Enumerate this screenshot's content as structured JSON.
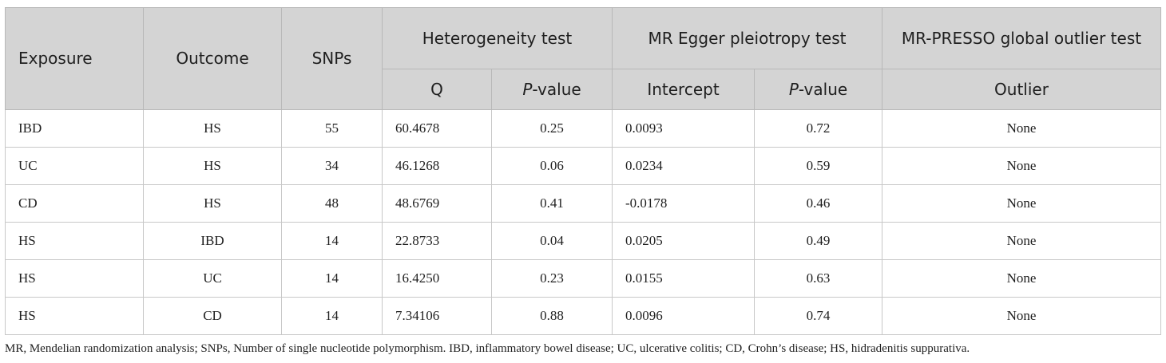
{
  "header": {
    "exposure": "Exposure",
    "outcome": "Outcome",
    "snps": "SNPs",
    "heterogeneity": "Heterogeneity test",
    "egger": "MR Egger pleiotropy test",
    "presso": "MR-PRESSO global outlier test",
    "q": "Q",
    "p_prefix": "P",
    "p_suffix": "-value",
    "intercept": "Intercept",
    "outlier": "Outlier"
  },
  "rows": [
    {
      "exposure": "IBD",
      "outcome": "HS",
      "snps": "55",
      "q": "60.4678",
      "q_p": "0.25",
      "intercept": "0.0093",
      "egger_p": "0.72",
      "outlier": "None"
    },
    {
      "exposure": "UC",
      "outcome": "HS",
      "snps": "34",
      "q": "46.1268",
      "q_p": "0.06",
      "intercept": "0.0234",
      "egger_p": "0.59",
      "outlier": "None"
    },
    {
      "exposure": "CD",
      "outcome": "HS",
      "snps": "48",
      "q": "48.6769",
      "q_p": "0.41",
      "intercept": "-0.0178",
      "egger_p": "0.46",
      "outlier": "None"
    },
    {
      "exposure": "HS",
      "outcome": "IBD",
      "snps": "14",
      "q": "22.8733",
      "q_p": "0.04",
      "intercept": "0.0205",
      "egger_p": "0.49",
      "outlier": "None"
    },
    {
      "exposure": "HS",
      "outcome": "UC",
      "snps": "14",
      "q": "16.4250",
      "q_p": "0.23",
      "intercept": "0.0155",
      "egger_p": "0.63",
      "outlier": "None"
    },
    {
      "exposure": "HS",
      "outcome": "CD",
      "snps": "14",
      "q": "7.34106",
      "q_p": "0.88",
      "intercept": "0.0096",
      "egger_p": "0.74",
      "outlier": "None"
    }
  ],
  "footnote": "MR, Mendelian randomization analysis; SNPs, Number of single nucleotide polymorphism. IBD, inflammatory bowel disease; UC, ulcerative colitis; CD, Crohn’s disease; HS, hidradenitis suppurativa."
}
